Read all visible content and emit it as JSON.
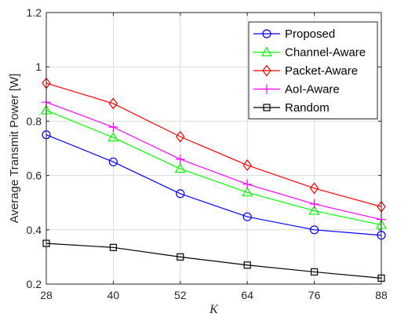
{
  "chart_data": {
    "type": "line",
    "xlabel": "K",
    "ylabel": "Average Transmit Power [W]",
    "x": [
      28,
      40,
      52,
      64,
      76,
      88
    ],
    "xlim": [
      28,
      88
    ],
    "ylim": [
      0.2,
      1.2
    ],
    "xticks": [
      "28",
      "40",
      "52",
      "64",
      "76",
      "88"
    ],
    "yticks": [
      "0.2",
      "0.4",
      "0.6",
      "0.8",
      "1",
      "1.2"
    ],
    "grid": true,
    "legend_position": "top-right",
    "series": [
      {
        "name": "Proposed",
        "color": "#0000ff",
        "marker": "circle",
        "values": [
          0.75,
          0.65,
          0.533,
          0.448,
          0.4,
          0.38
        ]
      },
      {
        "name": "Channel-Aware",
        "color": "#00ff00",
        "marker": "triangle",
        "values": [
          0.84,
          0.74,
          0.625,
          0.538,
          0.47,
          0.418
        ]
      },
      {
        "name": "Packet-Aware",
        "color": "#ff0000",
        "marker": "diamond",
        "values": [
          0.94,
          0.865,
          0.743,
          0.638,
          0.553,
          0.485
        ]
      },
      {
        "name": "AoI-Aware",
        "color": "#ff00ff",
        "marker": "plus",
        "values": [
          0.87,
          0.778,
          0.66,
          0.568,
          0.495,
          0.438
        ]
      },
      {
        "name": "Random",
        "color": "#000000",
        "marker": "square",
        "values": [
          0.35,
          0.335,
          0.3,
          0.27,
          0.245,
          0.222
        ]
      }
    ]
  }
}
